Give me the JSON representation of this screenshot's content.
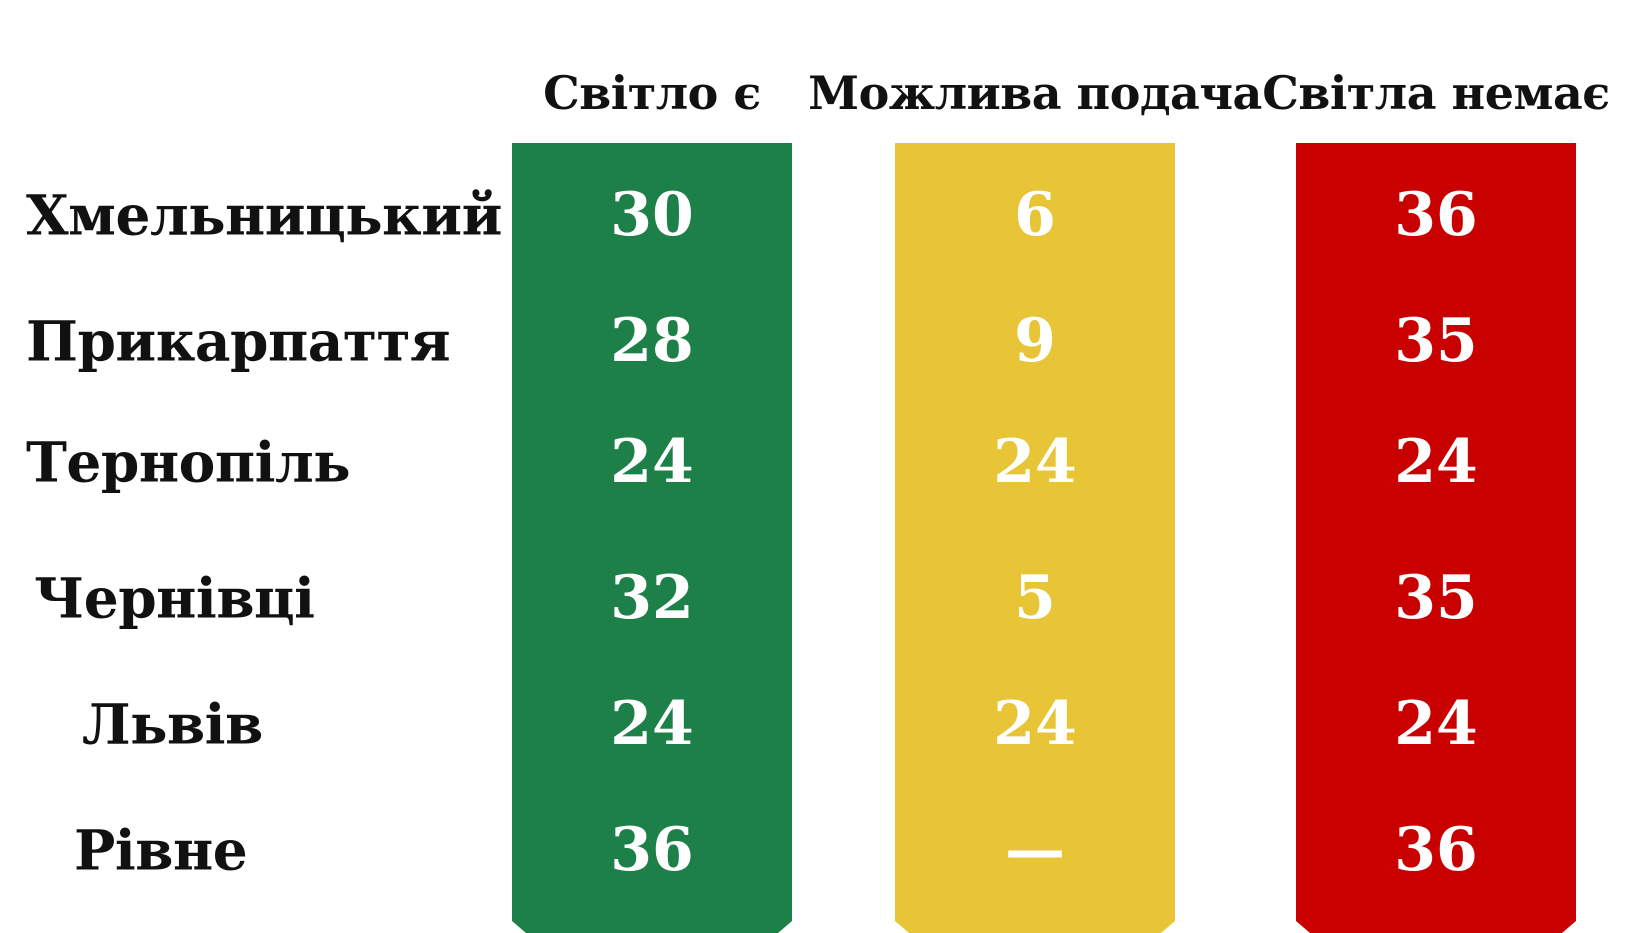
{
  "chart_data": {
    "type": "table",
    "columns": [
      {
        "header": "Світло є",
        "color": "#1e8049"
      },
      {
        "header": "Можлива подача",
        "color": "#e7c537"
      },
      {
        "header": "Світла немає",
        "color": "#c80000"
      }
    ],
    "rows": [
      {
        "label": "Хмельницький",
        "values": [
          "30",
          "6",
          "36"
        ]
      },
      {
        "label": "Прикарпаття",
        "values": [
          "28",
          "9",
          "35"
        ]
      },
      {
        "label": "Тернопіль",
        "values": [
          "24",
          "24",
          "24"
        ]
      },
      {
        "label": "Чернівці",
        "values": [
          "32",
          "5",
          "35"
        ]
      },
      {
        "label": "Львів",
        "values": [
          "24",
          "24",
          "24"
        ]
      },
      {
        "label": "Рівне",
        "values": [
          "36",
          "—",
          "36"
        ]
      }
    ]
  }
}
